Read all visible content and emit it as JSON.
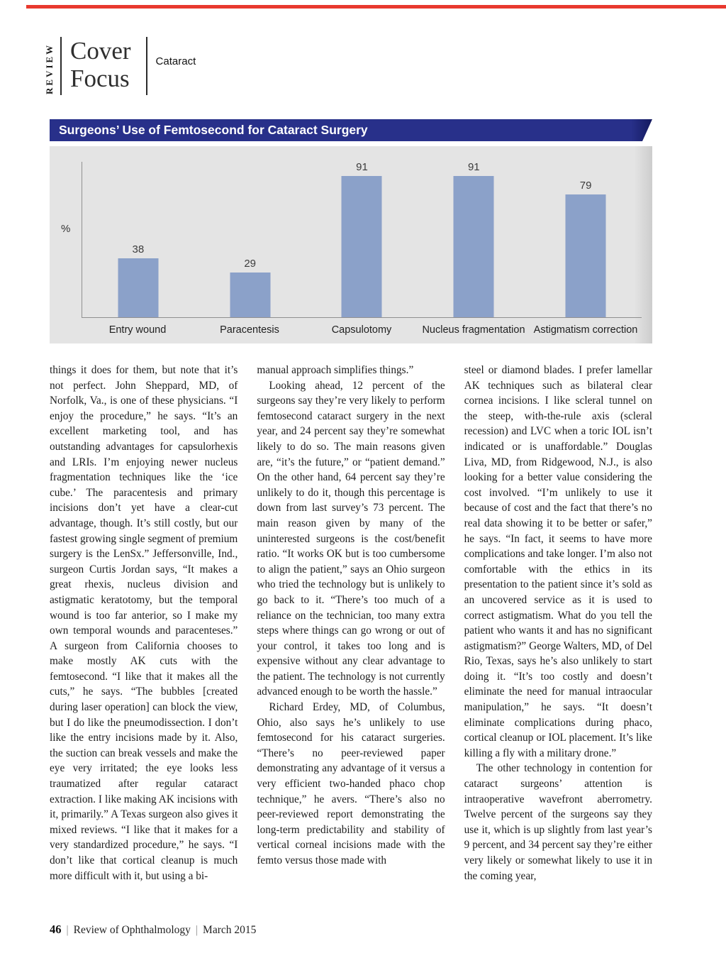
{
  "colors": {
    "accent_red": "#e8392e",
    "banner_blue": "#28308a",
    "banner_blue_dark": "#141a5e",
    "bar_blue": "#8ba1c9",
    "chart_bg": "#e4e4e4"
  },
  "masthead": {
    "review_label": "REVIEW",
    "title_line1": "Cover",
    "title_line2": "Focus",
    "section": "Cataract"
  },
  "chart_data": {
    "type": "bar",
    "title": "Surgeons’ Use of Femtosecond for Cataract Surgery",
    "categories": [
      "Entry wound",
      "Paracentesis",
      "Capsulotomy",
      "Nucleus fragmentation",
      "Astigmatism correction"
    ],
    "values": [
      38,
      29,
      91,
      91,
      79
    ],
    "xlabel": "",
    "ylabel": "%",
    "ylim": [
      0,
      100
    ],
    "grid": false,
    "legend": false,
    "value_labels": true
  },
  "article": {
    "columns": [
      {
        "paragraphs": [
          {
            "indent": false,
            "text": "things it does for them, but note that it’s not perfect. John Sheppard, MD, of Norfolk, Va., is one of these physicians. “I enjoy the procedure,” he says. “It’s an excellent marketing tool, and has outstanding advantages for capsulorhexis and LRIs. I’m enjoying newer nucleus fragmentation techniques like the ‘ice cube.’ The paracentesis and primary incisions don’t yet have a clear-cut advantage, though. It’s still costly, but our fastest growing single segment of premium surgery is the LenSx.” Jeffersonville, Ind., surgeon Curtis Jordan says, “It makes a great rhexis, nucleus division and astigmatic keratotomy, but the temporal wound is too far anterior, so I make my own temporal wounds and paracenteses.” A surgeon from California chooses to make mostly AK cuts with the femtosecond. “I like that it makes all the cuts,” he says. “The bubbles [created during laser operation] can block the view, but I do like the pneumodissection. I don’t like the entry incisions made by it. Also, the suction can break vessels and make the eye very irritated; the eye looks less traumatized after regular cataract extraction. I like making AK incisions with it, primarily.” A Texas surgeon also gives it mixed reviews. “I like that it makes for a very standardized procedure,” he says. “I don’t like that cortical cleanup is much more difficult with it, but using a bi-"
          }
        ]
      },
      {
        "paragraphs": [
          {
            "indent": false,
            "text": "manual approach simplifies things.”"
          },
          {
            "indent": true,
            "text": "Looking ahead, 12 percent of the surgeons say they’re very likely to perform femtosecond cataract surgery in the next year, and 24 percent say they’re somewhat likely to do so. The main reasons given are, “it’s the future,” or “patient demand.” On the other hand, 64 percent say they’re unlikely to do it, though this percentage is down from last survey’s 73 percent. The main reason given by many of the uninterested surgeons is the cost/benefit ratio. “It works OK but is too cumbersome to align the patient,” says an Ohio surgeon who tried the technology but is unlikely to go back to it. “There’s too much of a reliance on the technician, too many extra steps where things can go wrong or out of your control, it takes too long and is expensive without any clear advantage to the patient. The technology is not currently advanced enough to be worth the hassle.”"
          },
          {
            "indent": true,
            "text": "Richard Erdey, MD, of Columbus, Ohio, also says he’s unlikely to use femtosecond for his cataract surgeries. “There’s no peer-reviewed paper demonstrating any advantage of it versus a very efficient two-handed phaco chop technique,” he avers. “There’s also no peer-reviewed report demonstrating the long-term predictability and stability of vertical corneal incisions made with the femto versus those made with"
          }
        ]
      },
      {
        "paragraphs": [
          {
            "indent": false,
            "text": "steel or diamond blades. I prefer lamellar AK techniques such as bilateral clear cornea incisions. I like scleral tunnel on the steep, with-the-rule axis (scleral recession) and LVC when a toric IOL isn’t indicated or is unaffordable.” Douglas Liva, MD, from Ridgewood, N.J., is also looking for a better value considering the cost involved. “I’m unlikely to use it because of cost and the fact that there’s no real data showing it to be better or safer,” he says. “In fact, it seems to have more complications and take longer. I’m also not comfortable with the ethics in its presentation to the patient since it’s sold as an uncovered service as it is used to correct astigmatism. What do you tell the patient who wants it and has no significant astigmatism?” George Walters, MD, of Del Rio, Texas, says he’s also unlikely to start doing it. “It’s too costly and doesn’t eliminate the need for manual intraocular manipulation,” he says. “It doesn’t eliminate complications during phaco, cortical cleanup or IOL placement. It’s like killing a fly with a military drone.”"
          },
          {
            "indent": true,
            "text": "The other technology in contention for cataract surgeons’ attention is intraoperative wavefront aberrometry. Twelve percent of the surgeons say they use it, which is up slightly from last year’s 9 percent, and 34 percent say they’re either very likely or somewhat likely to use it in the coming year,"
          }
        ]
      }
    ]
  },
  "footer": {
    "page_number": "46",
    "publication": "Review of Ophthalmology",
    "date": "March 2015",
    "separator": "|"
  }
}
